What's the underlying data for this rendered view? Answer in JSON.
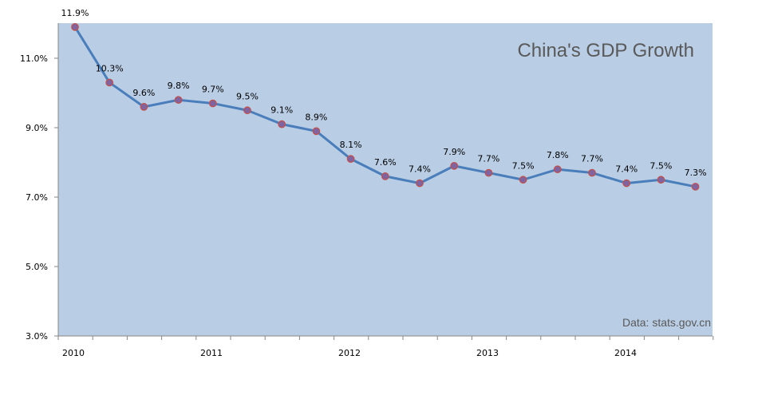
{
  "chart_data": {
    "type": "line",
    "title": "China's GDP Growth",
    "source_note": "Data: stats.gov.cn",
    "xlabel": "",
    "ylabel": "",
    "x_tick_labels": [
      "2010",
      "2011",
      "2012",
      "2013",
      "2014"
    ],
    "y_tick_labels": [
      "3.0%",
      "5.0%",
      "7.0%",
      "9.0%",
      "11.0%"
    ],
    "ylim": [
      3.0,
      12.0
    ],
    "series": [
      {
        "name": "GDP Growth",
        "values": [
          11.9,
          10.3,
          9.6,
          9.8,
          9.7,
          9.5,
          9.1,
          8.9,
          8.1,
          7.6,
          7.4,
          7.9,
          7.7,
          7.5,
          7.8,
          7.7,
          7.4,
          7.5,
          7.3
        ],
        "labels": [
          "11.9%",
          "10.3%",
          "9.6%",
          "9.8%",
          "9.7%",
          "9.5%",
          "9.1%",
          "8.9%",
          "8.1%",
          "7.6%",
          "7.4%",
          "7.9%",
          "7.7%",
          "7.5%",
          "7.8%",
          "7.7%",
          "7.4%",
          "7.5%",
          "7.3%"
        ]
      }
    ],
    "grid": false,
    "legend": "none",
    "colors": {
      "plot_background": "#b9cde5",
      "line": "#4a7ebb",
      "marker_fill": "#8064a2",
      "marker_edge": "#c0504d",
      "axis": "#868686"
    }
  }
}
